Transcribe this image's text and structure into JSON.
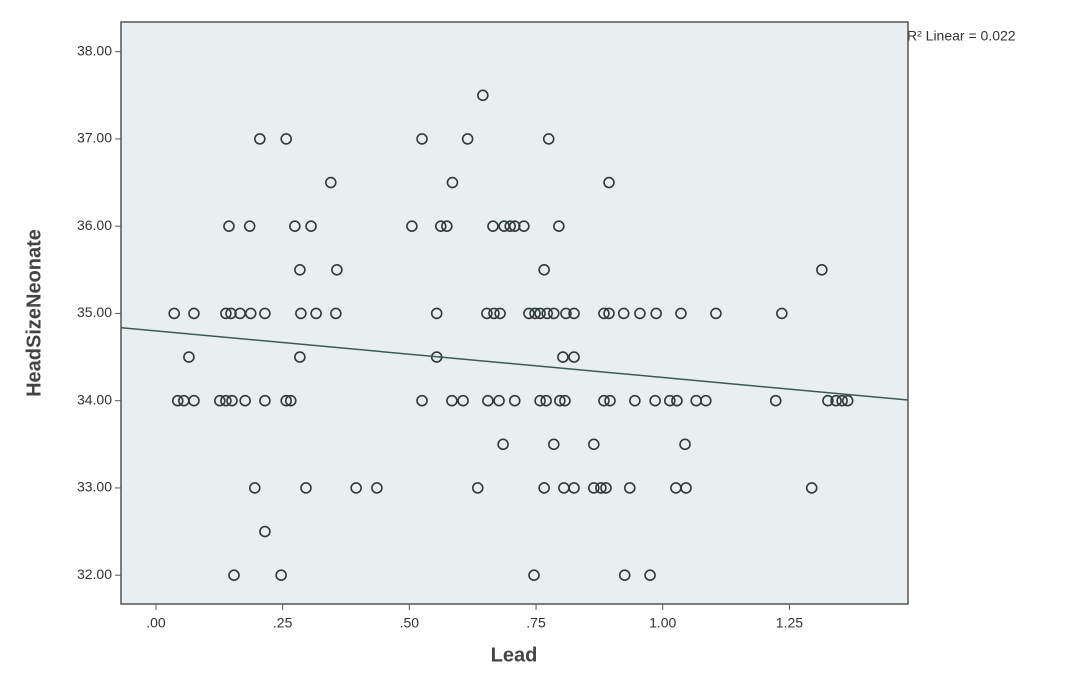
{
  "chart_data": {
    "type": "scatter",
    "x_label": "Lead",
    "y_label": "HeadSizeNeonate",
    "annotation": "R² Linear = 0.022",
    "color": "#2f3a3a",
    "plot_background": "#e9eff1",
    "x": [
      0.645,
      0.205,
      0.257,
      0.525,
      0.615,
      0.775,
      0.345,
      0.585,
      0.894,
      0.144,
      0.185,
      0.274,
      0.306,
      0.505,
      0.562,
      0.574,
      0.665,
      0.687,
      0.699,
      0.708,
      0.726,
      0.795,
      0.284,
      0.357,
      0.766,
      1.314,
      0.036,
      0.075,
      0.138,
      0.148,
      0.166,
      0.187,
      0.215,
      0.286,
      0.316,
      0.355,
      0.554,
      0.653,
      0.667,
      0.679,
      0.736,
      0.748,
      0.758,
      0.772,
      0.785,
      0.809,
      0.825,
      0.884,
      0.894,
      0.923,
      0.955,
      0.987,
      1.036,
      1.105,
      1.235,
      0.065,
      0.284,
      0.554,
      0.803,
      0.825,
      0.043,
      0.055,
      0.075,
      0.126,
      0.138,
      0.15,
      0.176,
      0.215,
      0.257,
      0.266,
      0.525,
      0.584,
      0.606,
      0.655,
      0.677,
      0.708,
      0.758,
      0.77,
      0.797,
      0.807,
      0.884,
      0.896,
      0.945,
      0.985,
      1.014,
      1.028,
      1.066,
      1.085,
      1.223,
      1.326,
      1.342,
      1.354,
      1.365,
      0.685,
      0.785,
      0.864,
      1.044,
      0.195,
      0.296,
      0.395,
      0.436,
      0.635,
      0.766,
      0.805,
      0.825,
      0.864,
      0.878,
      0.888,
      0.935,
      1.026,
      1.046,
      1.294,
      0.215,
      0.154,
      0.247,
      0.746,
      0.925,
      0.975
    ],
    "values": [
      37.5,
      37,
      37,
      37,
      37,
      37,
      36.5,
      36.5,
      36.5,
      36,
      36,
      36,
      36,
      36,
      36,
      36,
      36,
      36,
      36,
      36,
      36,
      36,
      35.5,
      35.5,
      35.5,
      35.5,
      35,
      35,
      35,
      35,
      35,
      35,
      35,
      35,
      35,
      35,
      35,
      35,
      35,
      35,
      35,
      35,
      35,
      35,
      35,
      35,
      35,
      35,
      35,
      35,
      35,
      35,
      35,
      35,
      35,
      34.5,
      34.5,
      34.5,
      34.5,
      34.5,
      34,
      34,
      34,
      34,
      34,
      34,
      34,
      34,
      34,
      34,
      34,
      34,
      34,
      34,
      34,
      34,
      34,
      34,
      34,
      34,
      34,
      34,
      34,
      34,
      34,
      34,
      34,
      34,
      34,
      34,
      34,
      34,
      34,
      33.5,
      33.5,
      33.5,
      33.5,
      33,
      33,
      33,
      33,
      33,
      33,
      33,
      33,
      33,
      33,
      33,
      33,
      33,
      33,
      33,
      32.5,
      32,
      32,
      32,
      32,
      32
    ],
    "fit_line": {
      "intercept": 34.8,
      "slope": -0.534
    },
    "xlim": [
      -0.069,
      1.484
    ],
    "ylim": [
      31.67,
      38.34
    ],
    "xticks": [
      {
        "value": 0,
        "label": ".00"
      },
      {
        "value": 0.25,
        "label": ".25"
      },
      {
        "value": 0.5,
        "label": ".50"
      },
      {
        "value": 0.75,
        "label": ".75"
      },
      {
        "value": 1,
        "label": "1.00"
      },
      {
        "value": 1.25,
        "label": "1.25"
      }
    ],
    "yticks": [
      {
        "value": 32,
        "label": "32.00"
      },
      {
        "value": 33,
        "label": "33.00"
      },
      {
        "value": 34,
        "label": "34.00"
      },
      {
        "value": 35,
        "label": "35.00"
      },
      {
        "value": 36,
        "label": "36.00"
      },
      {
        "value": 37,
        "label": "37.00"
      },
      {
        "value": 38,
        "label": "38.00"
      }
    ]
  }
}
